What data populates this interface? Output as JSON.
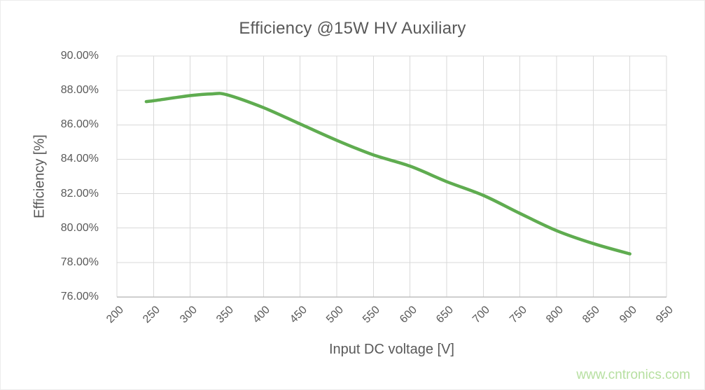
{
  "watermark": "www.cntronics.com",
  "chart_data": {
    "type": "line",
    "title": "Efficiency @15W HV Auxiliary",
    "xlabel": "Input DC voltage [V]",
    "ylabel": "Efficiency [%]",
    "xlim": [
      200,
      950
    ],
    "ylim": [
      76,
      90
    ],
    "x_ticks": [
      200,
      250,
      300,
      350,
      400,
      450,
      500,
      550,
      600,
      650,
      700,
      750,
      800,
      850,
      900,
      950
    ],
    "y_ticks": [
      76,
      78,
      80,
      82,
      84,
      86,
      88,
      90
    ],
    "y_tick_format": "percent_2dp",
    "grid": true,
    "legend": "none",
    "series": [
      {
        "name": "Efficiency",
        "x": [
          240,
          250,
          300,
          330,
          350,
          400,
          450,
          500,
          550,
          600,
          650,
          700,
          750,
          800,
          850,
          900
        ],
        "y": [
          87.35,
          87.4,
          87.7,
          87.8,
          87.75,
          87.0,
          86.05,
          85.1,
          84.25,
          83.6,
          82.7,
          81.9,
          80.85,
          79.85,
          79.1,
          78.5
        ],
        "color": "#5fac50"
      }
    ],
    "colors": {
      "line": "#5fac50",
      "gridline": "#d9d9d9",
      "axis_line": "#bfbfbf",
      "text": "#595959",
      "watermark": "#b6dfa0"
    }
  }
}
